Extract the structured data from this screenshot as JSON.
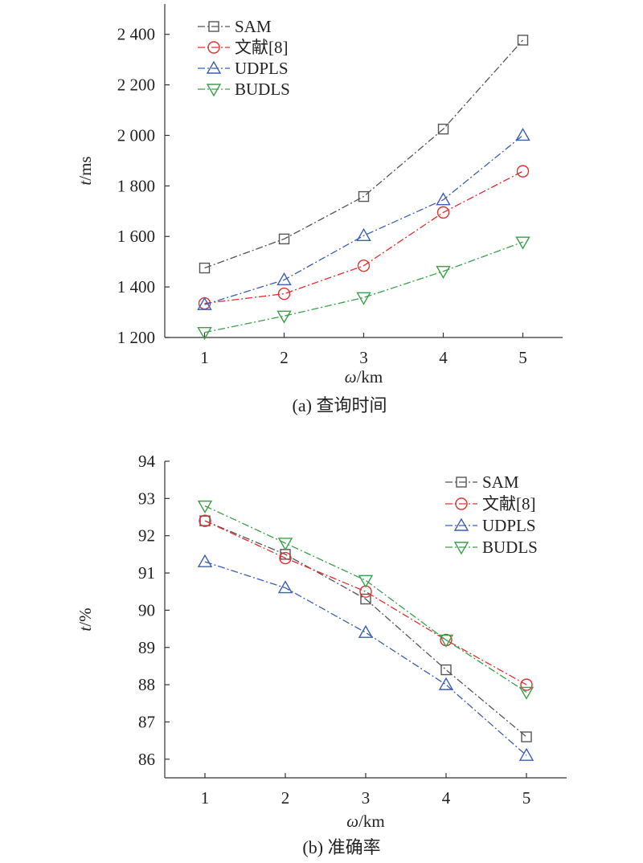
{
  "chart_data": [
    {
      "type": "line",
      "caption": "(a) 查询时间",
      "xlabel_var": "ω",
      "xlabel_unit": "/km",
      "ylabel_var": "t",
      "ylabel_unit": "/ms",
      "x": [
        1,
        2,
        3,
        4,
        5
      ],
      "xlim": [
        0.5,
        5.5
      ],
      "ylim": [
        1200,
        2520
      ],
      "xticks": [
        1,
        2,
        3,
        4,
        5
      ],
      "yticks": [
        1200,
        1400,
        1600,
        1800,
        2000,
        2200,
        2400
      ],
      "ytick_labels": [
        "1 200",
        "1 400",
        "1 600",
        "1 800",
        "2 000",
        "2 200",
        "2 400"
      ],
      "legend_position": "top-left",
      "series": [
        {
          "name": "SAM",
          "marker": "square",
          "color": "#555555",
          "values": [
            1475,
            1590,
            1758,
            2025,
            2377
          ]
        },
        {
          "name": "文献[8]",
          "marker": "circle",
          "color": "#e03030",
          "values": [
            1335,
            1373,
            1484,
            1695,
            1858
          ]
        },
        {
          "name": "UDPLS",
          "marker": "triangle-up",
          "color": "#3a5fb5",
          "values": [
            1330,
            1428,
            1603,
            1745,
            2000
          ]
        },
        {
          "name": "BUDLS",
          "marker": "triangle-down",
          "color": "#3aa04a",
          "values": [
            1220,
            1285,
            1358,
            1462,
            1578
          ]
        }
      ]
    },
    {
      "type": "line",
      "caption": "(b) 准确率",
      "xlabel_var": "ω",
      "xlabel_unit": "/km",
      "ylabel_var": "t",
      "ylabel_unit": "/%",
      "x": [
        1,
        2,
        3,
        4,
        5
      ],
      "xlim": [
        0.5,
        5.5
      ],
      "ylim": [
        85.5,
        94
      ],
      "xticks": [
        1,
        2,
        3,
        4,
        5
      ],
      "yticks": [
        86,
        87,
        88,
        89,
        90,
        91,
        92,
        93,
        94
      ],
      "ytick_labels": [
        "86",
        "87",
        "88",
        "89",
        "90",
        "91",
        "92",
        "93",
        "94"
      ],
      "legend_position": "top-right",
      "series": [
        {
          "name": "SAM",
          "marker": "square",
          "color": "#555555",
          "values": [
            92.4,
            91.5,
            90.3,
            88.4,
            86.6
          ]
        },
        {
          "name": "文献[8]",
          "marker": "circle",
          "color": "#e03030",
          "values": [
            92.4,
            91.4,
            90.5,
            89.2,
            88.0
          ]
        },
        {
          "name": "UDPLS",
          "marker": "triangle-up",
          "color": "#3a5fb5",
          "values": [
            91.3,
            90.6,
            89.4,
            88.0,
            86.1
          ]
        },
        {
          "name": "BUDLS",
          "marker": "triangle-down",
          "color": "#3aa04a",
          "values": [
            92.8,
            91.8,
            90.8,
            89.2,
            87.8
          ]
        }
      ]
    }
  ]
}
